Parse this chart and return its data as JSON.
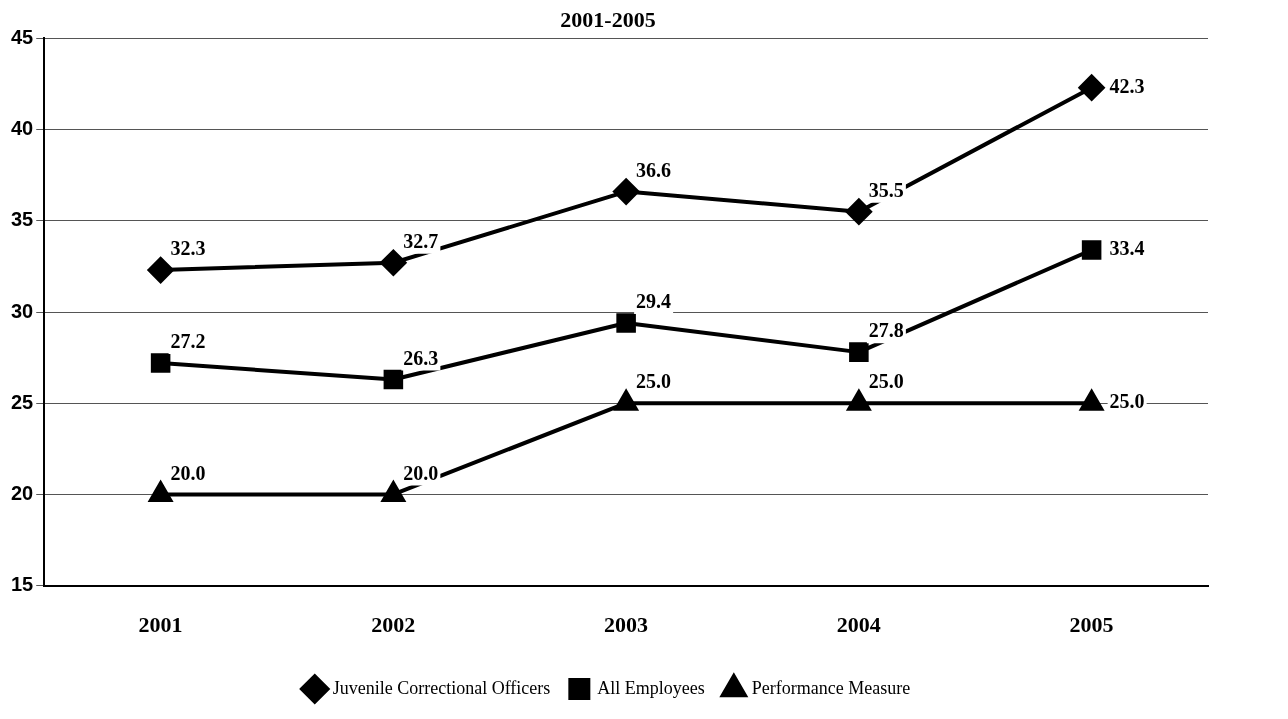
{
  "chart_data": {
    "type": "line",
    "title": "2001-2005",
    "categories": [
      "2001",
      "2002",
      "2003",
      "2004",
      "2005"
    ],
    "series": [
      {
        "name": "Juvenile Correctional Officers",
        "color": "#000000",
        "marker": "diamond",
        "values": [
          32.3,
          32.7,
          36.6,
          35.5,
          42.3
        ],
        "value_labels": [
          "32.3",
          "32.7",
          "36.6",
          "35.5",
          "42.3"
        ]
      },
      {
        "name": "All Employees",
        "color": "#000000",
        "marker": "square",
        "values": [
          27.2,
          26.3,
          29.4,
          27.8,
          33.4
        ],
        "value_labels": [
          "27.2",
          "26.3",
          "29.4",
          "27.8",
          "33.4"
        ]
      },
      {
        "name": "Performance Measure",
        "color": "#000000",
        "marker": "triangle",
        "values": [
          20.0,
          20.0,
          25.0,
          25.0,
          25.0
        ],
        "value_labels": [
          "20.0",
          "20.0",
          "25.0",
          "25.0",
          "25.0"
        ]
      }
    ],
    "ylim": [
      15,
      45
    ],
    "yticks": [
      15,
      20,
      25,
      30,
      35,
      40,
      45
    ],
    "grid": "y",
    "legend": "bottom",
    "line_style": "solid"
  }
}
